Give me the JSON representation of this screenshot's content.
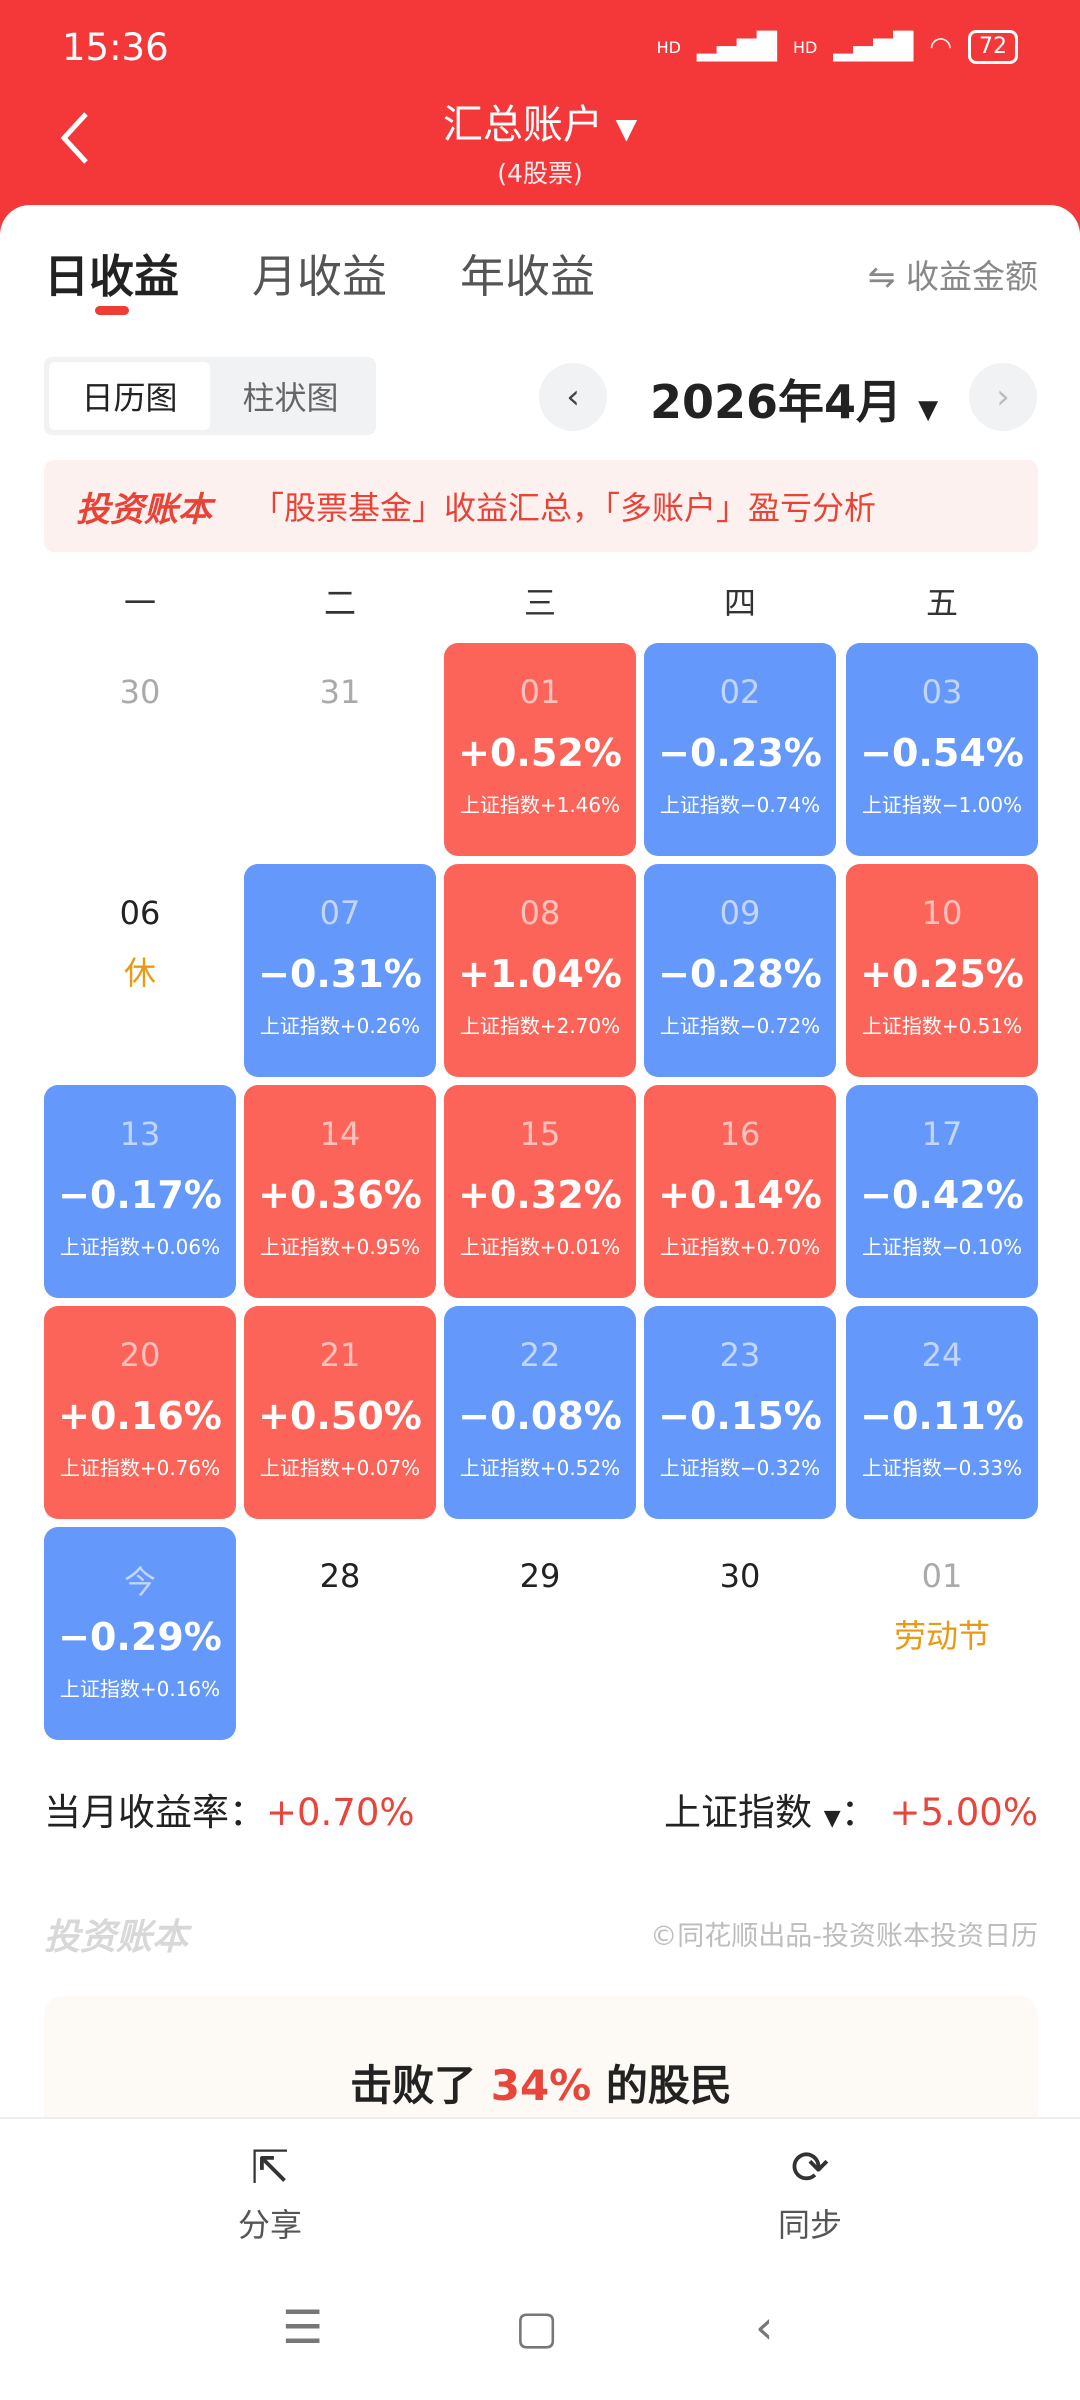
{
  "status": {
    "time": "15:36",
    "battery": "72",
    "signal1": "HD",
    "signal2": "HD"
  },
  "header": {
    "title": "汇总账户",
    "title_caret": "▼",
    "subtitle": "(4股票)"
  },
  "tabs": [
    {
      "label": "日收益",
      "active": true
    },
    {
      "label": "月收益"
    },
    {
      "label": "年收益"
    }
  ],
  "toggle_amount": "⇋ 收益金额",
  "view_toggle": [
    {
      "label": "日历图",
      "active": true
    },
    {
      "label": "柱状图"
    }
  ],
  "month_nav": {
    "prev": "‹",
    "month": "2026年4月",
    "caret": "▼",
    "next": "›"
  },
  "banner": {
    "logo": "投资账本",
    "text": "「股票基金」收益汇总，「多账户」盈亏分析"
  },
  "weekdays": [
    "一",
    "二",
    "三",
    "四",
    "五"
  ],
  "colors": {
    "up": "#fd6459",
    "down": "#6498fb",
    "brand": "#f4383a",
    "holiday": "#e99a12"
  },
  "weeks": [
    [
      {
        "day": "30",
        "type": "muted"
      },
      {
        "day": "31",
        "type": "muted"
      },
      {
        "day": "01",
        "type": "up",
        "pct": "+0.52%",
        "index": "上证指数+1.46%"
      },
      {
        "day": "02",
        "type": "down",
        "pct": "−0.23%",
        "index": "上证指数−0.74%"
      },
      {
        "day": "03",
        "type": "down",
        "pct": "−0.54%",
        "index": "上证指数−1.00%"
      }
    ],
    [
      {
        "day": "06",
        "type": "plain",
        "note": "休"
      },
      {
        "day": "07",
        "type": "down",
        "pct": "−0.31%",
        "index": "上证指数+0.26%"
      },
      {
        "day": "08",
        "type": "up",
        "pct": "+1.04%",
        "index": "上证指数+2.70%"
      },
      {
        "day": "09",
        "type": "down",
        "pct": "−0.28%",
        "index": "上证指数−0.72%"
      },
      {
        "day": "10",
        "type": "up",
        "pct": "+0.25%",
        "index": "上证指数+0.51%"
      }
    ],
    [
      {
        "day": "13",
        "type": "down",
        "pct": "−0.17%",
        "index": "上证指数+0.06%"
      },
      {
        "day": "14",
        "type": "up",
        "pct": "+0.36%",
        "index": "上证指数+0.95%"
      },
      {
        "day": "15",
        "type": "up",
        "pct": "+0.32%",
        "index": "上证指数+0.01%"
      },
      {
        "day": "16",
        "type": "up",
        "pct": "+0.14%",
        "index": "上证指数+0.70%"
      },
      {
        "day": "17",
        "type": "down",
        "pct": "−0.42%",
        "index": "上证指数−0.10%"
      }
    ],
    [
      {
        "day": "20",
        "type": "up",
        "pct": "+0.16%",
        "index": "上证指数+0.76%"
      },
      {
        "day": "21",
        "type": "up",
        "pct": "+0.50%",
        "index": "上证指数+0.07%"
      },
      {
        "day": "22",
        "type": "down",
        "pct": "−0.08%",
        "index": "上证指数+0.52%"
      },
      {
        "day": "23",
        "type": "down",
        "pct": "−0.15%",
        "index": "上证指数−0.32%"
      },
      {
        "day": "24",
        "type": "down",
        "pct": "−0.11%",
        "index": "上证指数−0.33%"
      }
    ],
    [
      {
        "day": "今",
        "type": "down",
        "pct": "−0.29%",
        "index": "上证指数+0.16%"
      },
      {
        "day": "28",
        "type": "plain"
      },
      {
        "day": "29",
        "type": "plain"
      },
      {
        "day": "30",
        "type": "plain"
      },
      {
        "day": "01",
        "type": "muted",
        "note": "劳动节"
      }
    ]
  ],
  "summary": {
    "label": "当月收益率：",
    "value": "+0.70%",
    "index_label": "上证指数",
    "index_caret": "▼",
    "index_colon": "：",
    "index_value": "+5.00%"
  },
  "footer": {
    "logo": "投资账本",
    "copyright": "©同花顺出品-投资账本投资日历"
  },
  "beat": {
    "prefix": "击败了 ",
    "value": "34%",
    "suffix": " 的股民"
  },
  "bottom_bar": {
    "share": "分享",
    "sync": "同步"
  }
}
